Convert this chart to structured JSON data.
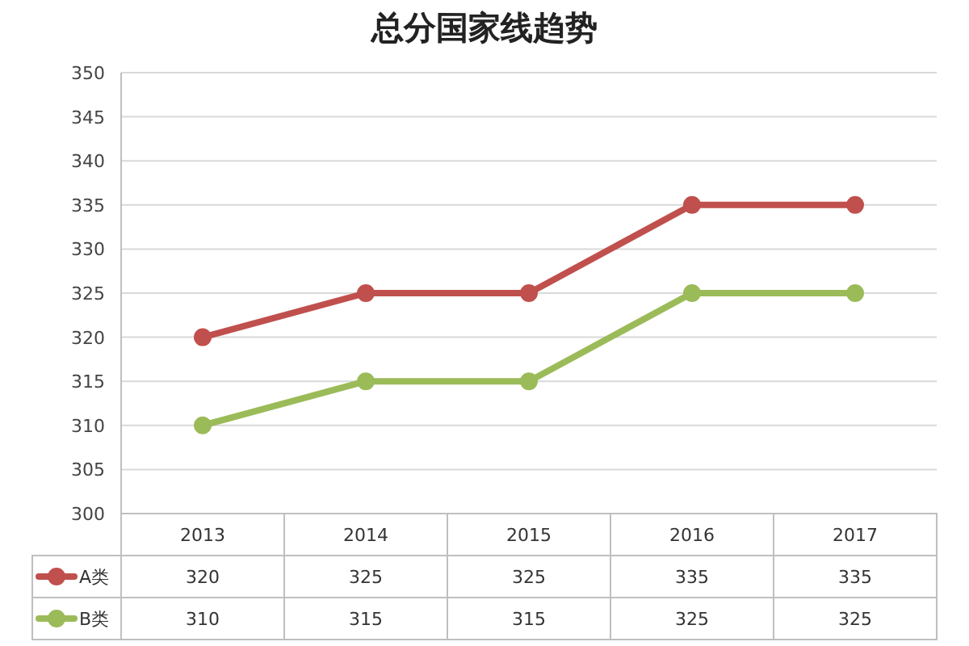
{
  "chart_data": {
    "type": "line",
    "title": "总分国家线趋势",
    "categories": [
      "2013",
      "2014",
      "2015",
      "2016",
      "2017"
    ],
    "series": [
      {
        "name": "A类",
        "color": "#c0504d",
        "values": [
          320,
          325,
          325,
          335,
          335
        ]
      },
      {
        "name": "B类",
        "color": "#9bbb59",
        "values": [
          310,
          315,
          315,
          325,
          325
        ]
      }
    ],
    "ylim": [
      300,
      350
    ],
    "yticks": [
      300,
      305,
      310,
      315,
      320,
      325,
      330,
      335,
      340,
      345,
      350
    ],
    "grid": "y",
    "marker": "circle",
    "line_style": "solid",
    "data_labels": true,
    "legend": "bottom"
  }
}
